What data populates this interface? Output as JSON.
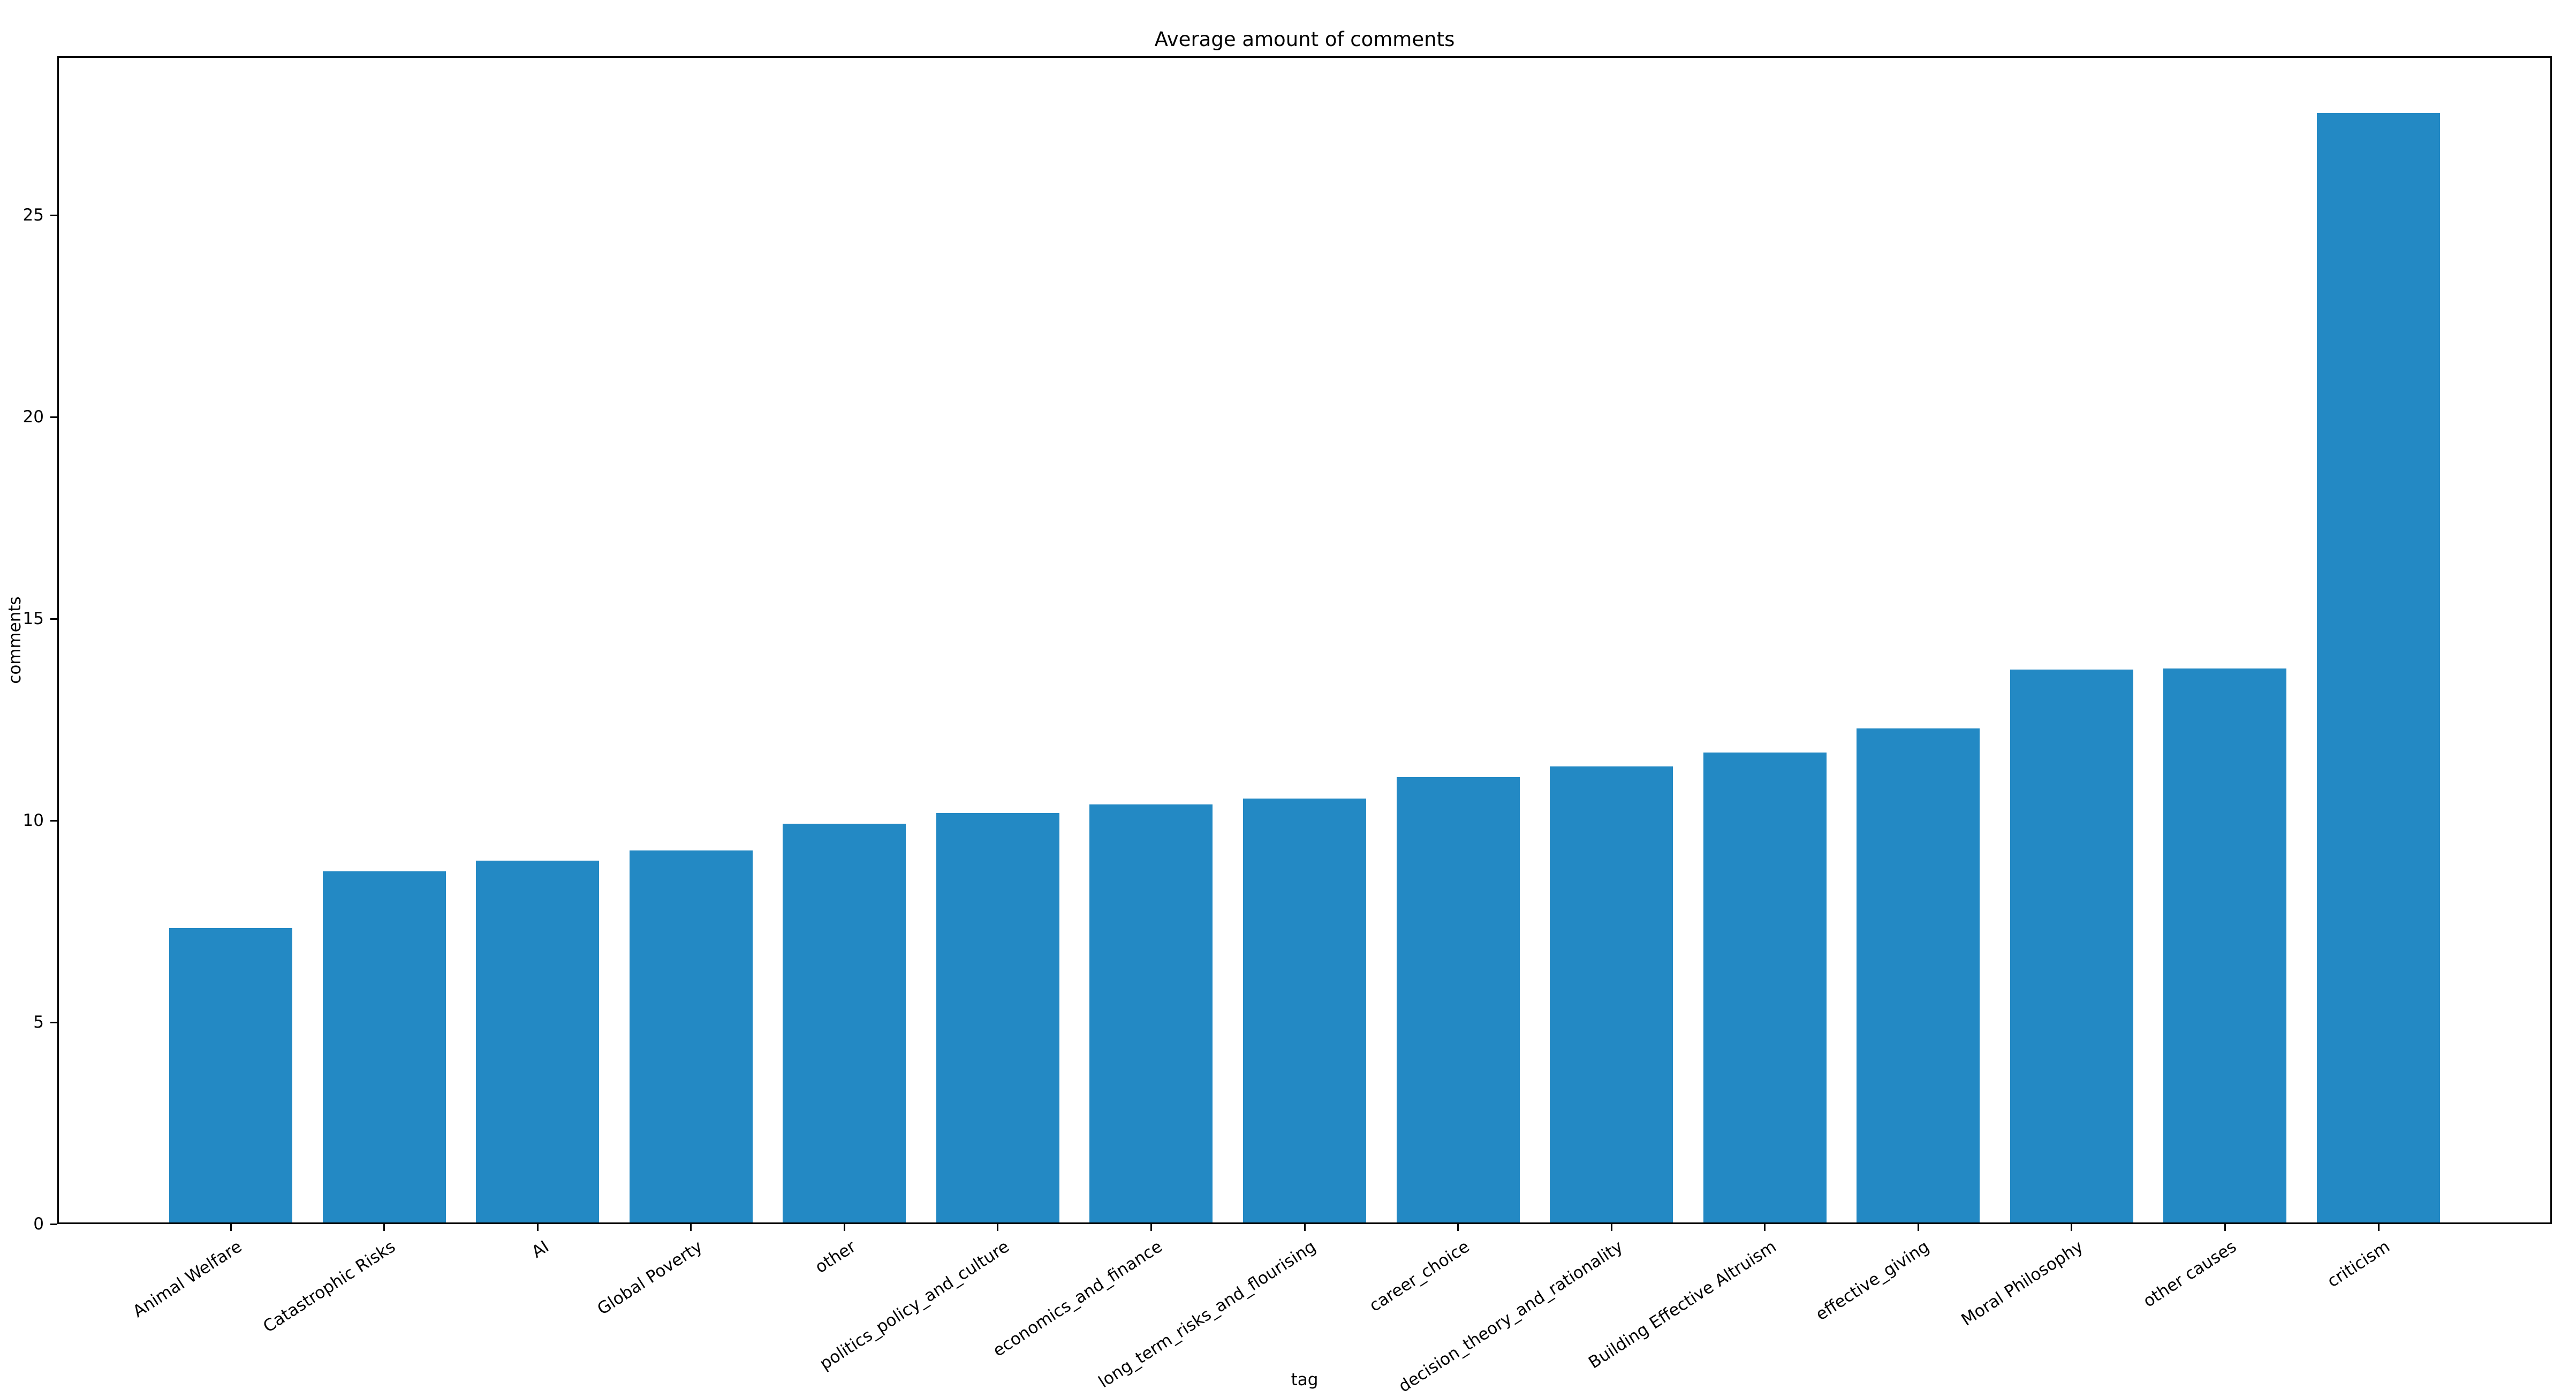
{
  "figure": {
    "title": "Average amount of comments",
    "xlabel": "tag",
    "ylabel": "comments"
  },
  "chart_data": {
    "type": "bar",
    "title": "Average amount of comments",
    "xlabel": "tag",
    "ylabel": "comments",
    "categories": [
      "Animal Welfare",
      "Catastrophic Risks",
      "AI",
      "Global Poverty",
      "other",
      "politics_policy_and_culture",
      "economics_and_finance",
      "long_term_risks_and_flourising",
      "career_choice",
      "decision_theory_and_rationality",
      "Building Effective Altruism",
      "effective_giving",
      "Moral Philosophy",
      "other causes",
      "criticism"
    ],
    "values": [
      7.34,
      8.74,
      9.0,
      9.26,
      9.92,
      10.19,
      10.4,
      10.55,
      11.07,
      11.34,
      11.68,
      12.28,
      13.74,
      13.77,
      27.53
    ],
    "yticks": [
      0,
      5,
      10,
      15,
      20,
      25
    ],
    "ylim": [
      0,
      28.94
    ],
    "grid": false,
    "legend_position": "none",
    "bar_color": "#2389c4",
    "axis_color": "#000000"
  }
}
